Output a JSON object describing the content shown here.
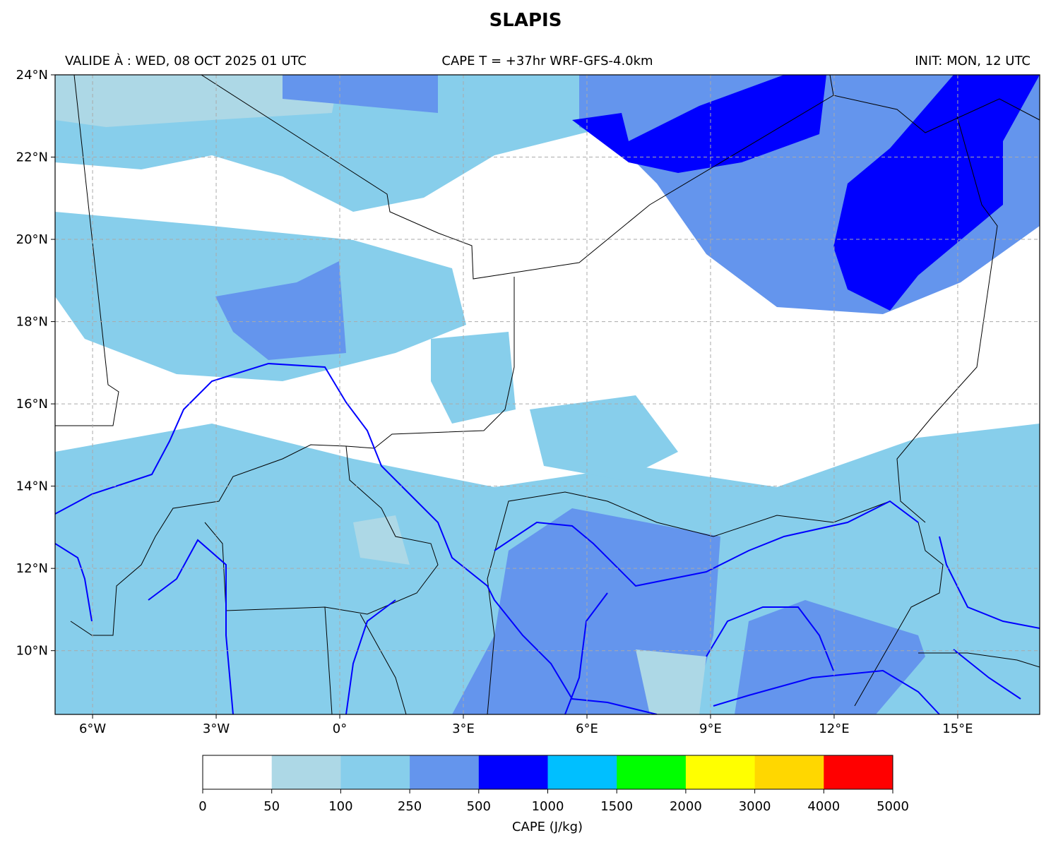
{
  "title": "SLAPIS",
  "valid": "VALIDE À : WED, 08 OCT 2025 01 UTC",
  "run": "CAPE T = +37hr WRF-GFS-4.0km",
  "init": "INIT: MON, 12 UTC",
  "map": {
    "xlim": [
      -6.91,
      16.99
    ],
    "ylim": [
      8.45,
      24
    ],
    "xticks": [
      {
        "value": -6,
        "label": "6°W"
      },
      {
        "value": -3,
        "label": "3°W"
      },
      {
        "value": 0,
        "label": "0°"
      },
      {
        "value": 3,
        "label": "3°E"
      },
      {
        "value": 6,
        "label": "6°E"
      },
      {
        "value": 9,
        "label": "9°E"
      },
      {
        "value": 12,
        "label": "12°E"
      },
      {
        "value": 15,
        "label": "15°E"
      }
    ],
    "yticks": [
      {
        "value": 10,
        "label": "10°N"
      },
      {
        "value": 12,
        "label": "12°N"
      },
      {
        "value": 14,
        "label": "14°N"
      },
      {
        "value": 16,
        "label": "16°N"
      },
      {
        "value": 18,
        "label": "18°N"
      },
      {
        "value": 20,
        "label": "20°N"
      },
      {
        "value": 22,
        "label": "22°N"
      },
      {
        "value": 24,
        "label": "24°N"
      }
    ],
    "grid": true
  },
  "colorbar": {
    "label": "CAPE (J/kg)",
    "bounds": [
      0,
      50,
      100,
      250,
      500,
      1000,
      1500,
      2000,
      3000,
      4000,
      5000
    ],
    "colors": [
      "#ffffff",
      "#add8e6",
      "#87ceeb",
      "#6495ed",
      "#0000ff",
      "#00bfff",
      "#00ff00",
      "#ffff00",
      "#ffd700",
      "#ff0000"
    ]
  }
}
